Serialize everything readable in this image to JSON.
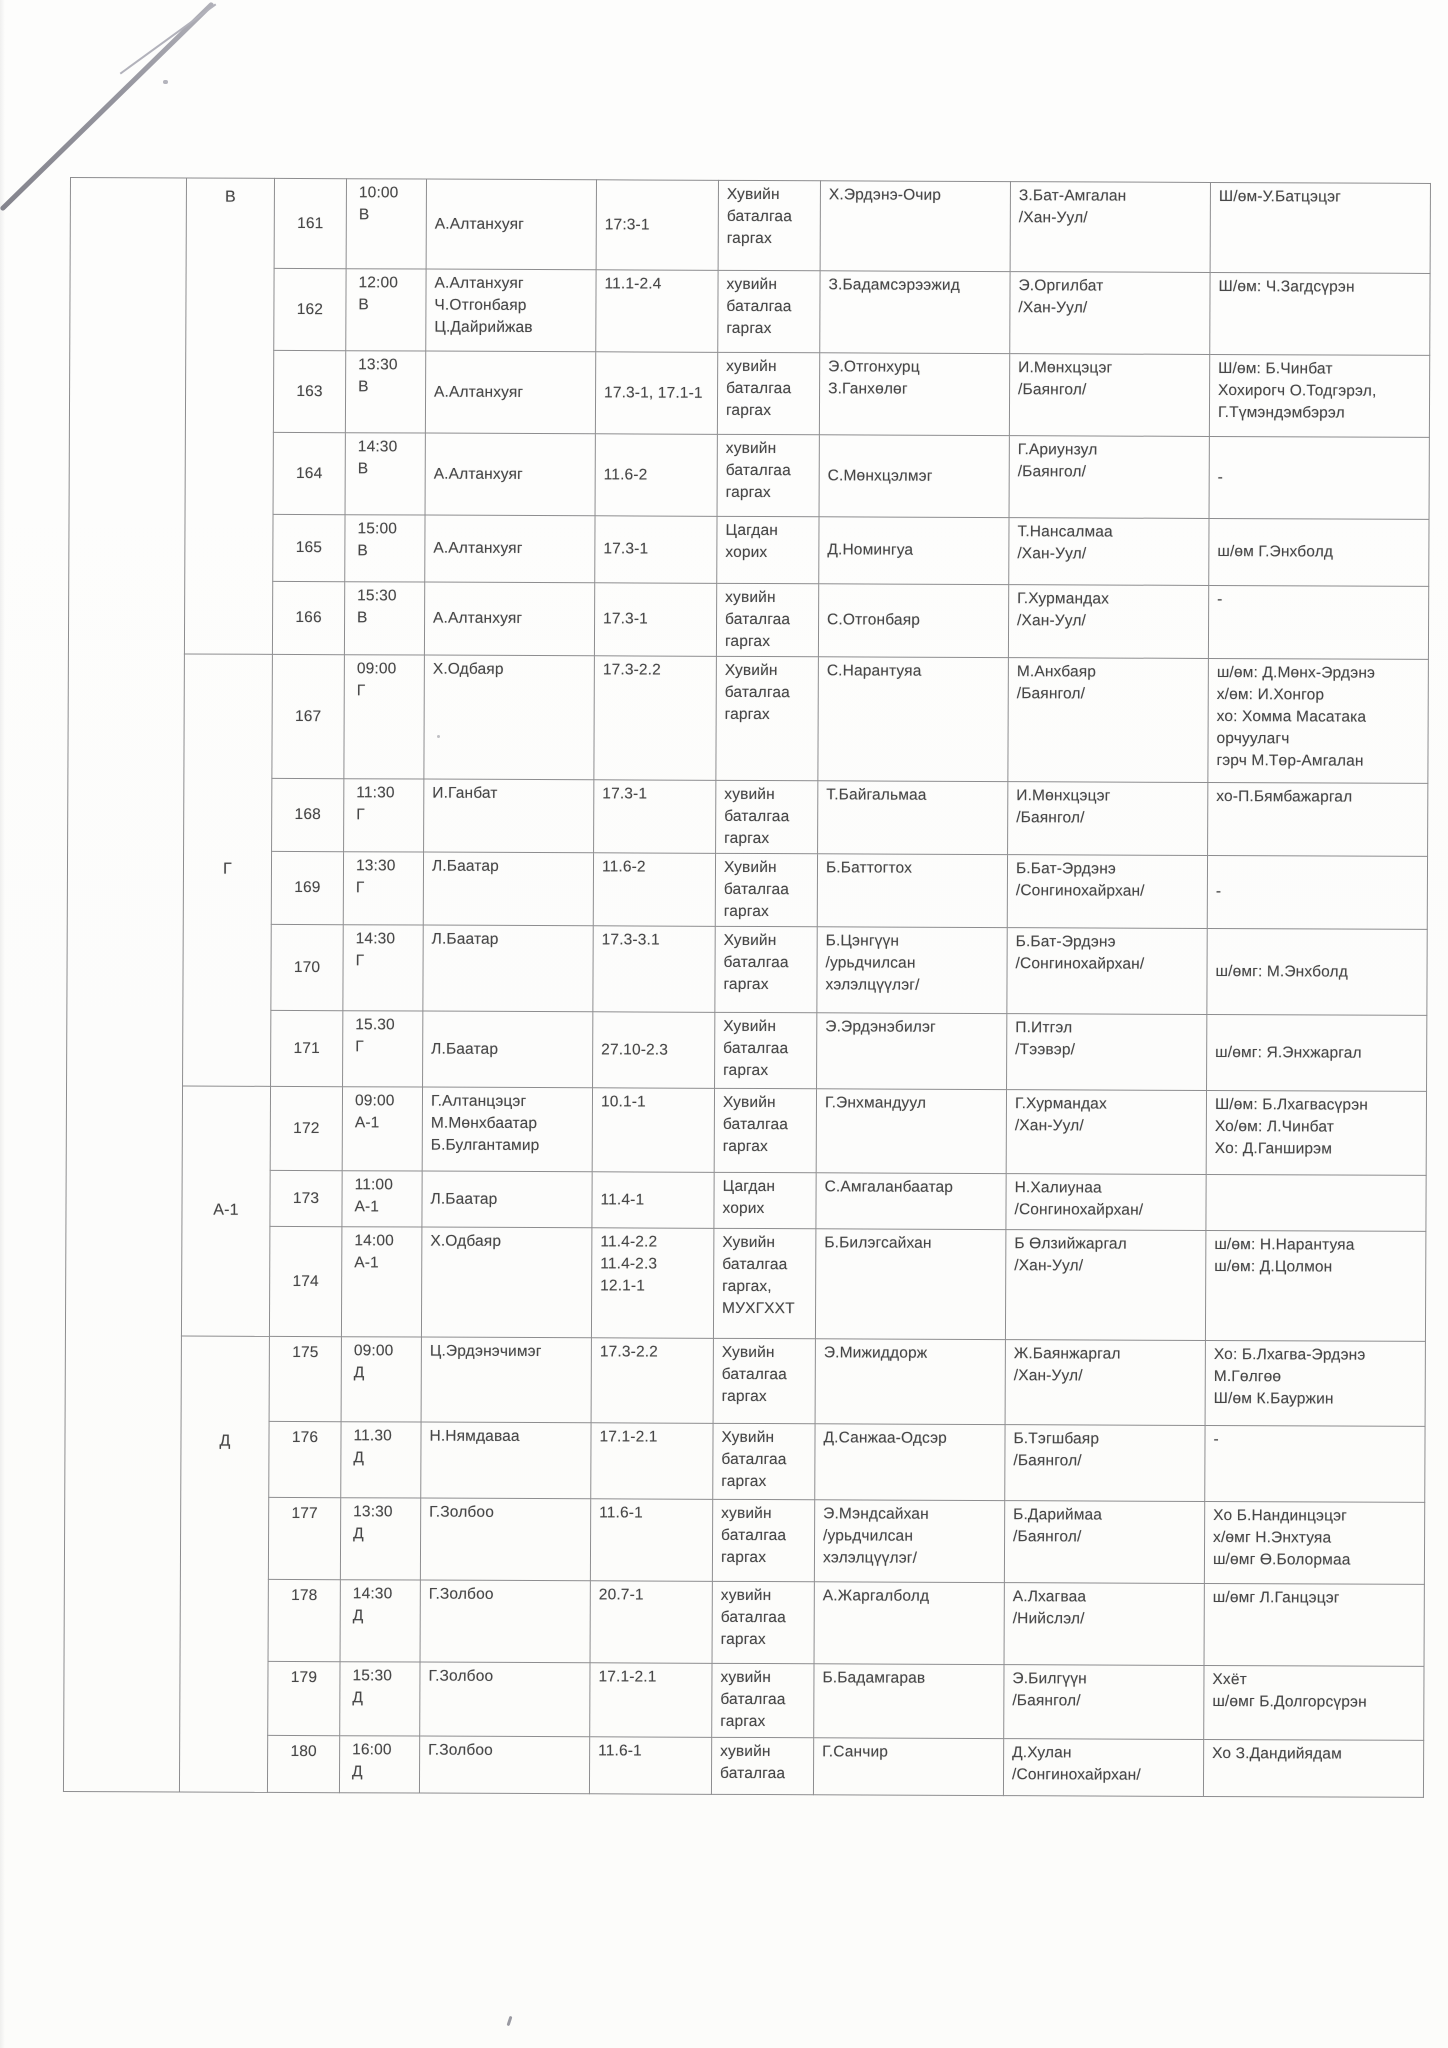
{
  "page": {
    "ink_color": "#474747",
    "border_color": "#8d8d8f",
    "paper_color": "#fdfdfc"
  },
  "table": {
    "groups": [
      {
        "label": "В",
        "rows": [
          {
            "no": "161",
            "time": "10:00",
            "session": "В",
            "judges": [
              "А.Алтанхуяг"
            ],
            "article": [
              "17:3-1"
            ],
            "request": "Хувийн баталгаа гаргах",
            "defendant": [
              "Х.Эрдэнэ-Очир"
            ],
            "prosecutor": [
              "З.Бат-Амгалан",
              "/Хан-Уул/"
            ],
            "notes": [
              "Ш/өм-У.Батцэцэг"
            ]
          },
          {
            "no": "162",
            "time": "12:00",
            "session": "В",
            "judges": [
              "А.Алтанхуяг",
              "Ч.Отгонбаяр",
              "Ц.Дайрийжав"
            ],
            "article": [
              "11.1-2.4"
            ],
            "request": "хувийн баталгаа гаргах",
            "defendant": [
              "З.Бадамсэрээжид"
            ],
            "prosecutor": [
              "Э.Оргилбат",
              "/Хан-Уул/"
            ],
            "notes": [
              "Ш/өм: Ч.Загдсүрэн"
            ]
          },
          {
            "no": "163",
            "time": "13:30",
            "session": "В",
            "judges": [
              "А.Алтанхуяг"
            ],
            "article": [
              "17.3-1, 17.1-1"
            ],
            "request": "хувийн баталгаа гаргах",
            "defendant": [
              "Э.Отгонхурц",
              "З.Ганхөлөг"
            ],
            "prosecutor": [
              "И.Мөнхцэцэг",
              "/Баянгол/"
            ],
            "notes": [
              "Ш/өм: Б.Чинбат",
              "Хохирогч О.Тодгэрэл,",
              "Г.Түмэндэмбэрэл"
            ]
          },
          {
            "no": "164",
            "time": "14:30",
            "session": "В",
            "judges": [
              "А.Алтанхуяг"
            ],
            "article": [
              "11.6-2"
            ],
            "request": "хувийн баталгаа гаргах",
            "defendant": [
              "С.Мөнхцэлмэг"
            ],
            "prosecutor": [
              "Г.Ариунзул",
              "/Баянгол/"
            ],
            "notes": [
              "-"
            ]
          },
          {
            "no": "165",
            "time": "15:00",
            "session": "В",
            "judges": [
              "А.Алтанхуяг"
            ],
            "article": [
              "17.3-1"
            ],
            "request": "Цагдан хорих",
            "defendant": [
              "Д.Номингуа"
            ],
            "prosecutor": [
              "Т.Нансалмаа",
              "/Хан-Уул/"
            ],
            "notes": [
              "ш/өм Г.Энхболд"
            ]
          },
          {
            "no": "166",
            "time": "15:30",
            "session": "В",
            "judges": [
              "А.Алтанхуяг"
            ],
            "article": [
              "17.3-1"
            ],
            "request": "хувийн баталгаа гаргах",
            "defendant": [
              "С.Отгонбаяр"
            ],
            "prosecutor": [
              "Г.Хурмандах",
              "/Хан-Уул/"
            ],
            "notes": [
              "-"
            ]
          }
        ]
      },
      {
        "label": "Г",
        "rows": [
          {
            "no": "167",
            "time": "09:00",
            "session": "Г",
            "judges": [
              "Х.Одбаяр"
            ],
            "article": [
              "17.3-2.2"
            ],
            "request": "Хувийн баталгаа гаргах",
            "defendant": [
              "С.Нарантуяа"
            ],
            "prosecutor": [
              "М.Анхбаяр",
              "/Баянгол/"
            ],
            "notes": [
              "ш/өм: Д.Мөнх-Эрдэнэ",
              "х/өм: И.Хонгор",
              "хо: Хомма Масатака",
              "орчуулагч",
              "гэрч М.Төр-Амгалан"
            ]
          },
          {
            "no": "168",
            "time": "11:30",
            "session": "Г",
            "judges": [
              "И.Ганбат"
            ],
            "article": [
              "17.3-1"
            ],
            "request": "хувийн баталгаа гаргах",
            "defendant": [
              "Т.Байгальмаа"
            ],
            "prosecutor": [
              "И.Мөнхцэцэг",
              "/Баянгол/"
            ],
            "notes": [
              "хо-П.Бямбажаргал"
            ]
          },
          {
            "no": "169",
            "time": "13:30",
            "session": "Г",
            "judges": [
              "Л.Баатар"
            ],
            "article": [
              "11.6-2"
            ],
            "request": "Хувийн баталгаа гаргах",
            "defendant": [
              "Б.Баттогтох"
            ],
            "prosecutor": [
              "Б.Бат-Эрдэнэ",
              "/Сонгинохайрхан/"
            ],
            "notes": [
              "-"
            ]
          },
          {
            "no": "170",
            "time": "14:30",
            "session": "Г",
            "judges": [
              "Л.Баатар"
            ],
            "article": [
              "17.3-3.1"
            ],
            "request": "Хувийн баталгаа гаргах",
            "defendant": [
              "Б.Цэнгүүн",
              "/урьдчилсан хэлэлцүүлэг/"
            ],
            "prosecutor": [
              "Б.Бат-Эрдэнэ",
              "/Сонгинохайрхан/"
            ],
            "notes": [
              "ш/өмг: М.Энхболд"
            ]
          },
          {
            "no": "171",
            "time": "15.30",
            "session": "Г",
            "judges": [
              "Л.Баатар"
            ],
            "article": [
              "27.10-2.3"
            ],
            "request": "Хувийн баталгаа гаргах",
            "defendant": [
              "Э.Эрдэнэбилэг"
            ],
            "prosecutor": [
              "П.Итгэл",
              "/Тээвэр/"
            ],
            "notes": [
              "ш/өмг: Я.Энхжаргал"
            ]
          }
        ]
      },
      {
        "label": "А-1",
        "rows": [
          {
            "no": "172",
            "time": "09:00",
            "session": "А-1",
            "judges": [
              "Г.Алтанцэцэг",
              "М.Мөнхбаатар",
              "Б.Булгантамир"
            ],
            "article": [
              "10.1-1"
            ],
            "request": "Хувийн баталгаа гаргах",
            "defendant": [
              "Г.Энхмандуул"
            ],
            "prosecutor": [
              "Г.Хурмандах",
              "/Хан-Уул/"
            ],
            "notes": [
              "Ш/өм: Б.Лхагвасүрэн",
              "Хо/өм: Л.Чинбат",
              "Хо: Д.Ганширэм"
            ]
          },
          {
            "no": "173",
            "time": "11:00",
            "session": "А-1",
            "judges": [
              "Л.Баатар"
            ],
            "article": [
              "11.4-1"
            ],
            "request": "Цагдан хорих",
            "defendant": [
              "С.Амгаланбаатар"
            ],
            "prosecutor": [
              "Н.Халиунаа",
              "/Сонгинохайрхан/"
            ],
            "notes": [
              ""
            ]
          },
          {
            "no": "174",
            "time": "14:00",
            "session": "А-1",
            "judges": [
              "Х.Одбаяр"
            ],
            "article": [
              "11.4-2.2",
              "11.4-2.3",
              "12.1-1"
            ],
            "request": "Хувийн баталгаа гаргах, МУХГХХТ",
            "defendant": [
              "Б.Билэгсайхан"
            ],
            "prosecutor": [
              "Б Өлзийжаргал",
              "/Хан-Уул/"
            ],
            "notes": [
              "ш/өм: Н.Нарантуяа",
              "ш/өм: Д.Цолмон"
            ]
          }
        ]
      },
      {
        "label": "Д",
        "rows": [
          {
            "no": "175",
            "time": "09:00",
            "session": "Д",
            "judges": [
              "Ц.Эрдэнэчимэг"
            ],
            "article": [
              "17.3-2.2"
            ],
            "request": "Хувийн баталгаа гаргах",
            "defendant": [
              "Э.Мижиддорж"
            ],
            "prosecutor": [
              "Ж.Баянжаргал",
              "/Хан-Уул/"
            ],
            "notes": [
              "Хо: Б.Лхагва-Эрдэнэ",
              "М.Гөлгөө",
              "Ш/өм К.Бауржин"
            ]
          },
          {
            "no": "176",
            "time": "11.30",
            "session": "Д",
            "judges": [
              "Н.Нямдаваа"
            ],
            "article": [
              "17.1-2.1"
            ],
            "request": "Хувийн баталгаа гаргах",
            "defendant": [
              "Д.Санжаа-Одсэр"
            ],
            "prosecutor": [
              "Б.Тэгшбаяр",
              "/Баянгол/"
            ],
            "notes": [
              "-"
            ]
          },
          {
            "no": "177",
            "time": "13:30",
            "session": "Д",
            "judges": [
              "Г.Золбоо"
            ],
            "article": [
              "11.6-1"
            ],
            "request": "хувийн баталгаа гаргах",
            "defendant": [
              "Э.Мэндсайхан",
              "/урьдчилсан хэлэлцүүлэг/"
            ],
            "prosecutor": [
              "Б.Дариймаа",
              "/Баянгол/"
            ],
            "notes": [
              "Хо Б.Нандинцэцэг",
              "х/өмг Н.Энхтуяа",
              "ш/өмг Ө.Болормаа"
            ]
          },
          {
            "no": "178",
            "time": "14:30",
            "session": "Д",
            "judges": [
              "Г.Золбоо"
            ],
            "article": [
              "20.7-1"
            ],
            "request": "хувийн баталгаа гаргах",
            "defendant": [
              "А.Жаргалболд"
            ],
            "prosecutor": [
              "А.Лхагваа",
              "/Нийслэл/"
            ],
            "notes": [
              "ш/өмг Л.Ганцэцэг"
            ]
          },
          {
            "no": "179",
            "time": "15:30",
            "session": "Д",
            "judges": [
              "Г.Золбоо"
            ],
            "article": [
              "17.1-2.1"
            ],
            "request": "хувийн баталгаа гаргах",
            "defendant": [
              "Б.Бадамгарав"
            ],
            "prosecutor": [
              "Э.Билгүүн",
              "/Баянгол/"
            ],
            "notes": [
              "Ххёт",
              "ш/өмг Б.Долгорсүрэн"
            ]
          },
          {
            "no": "180",
            "time": "16:00",
            "session": "Д",
            "judges": [
              "Г.Золбоо"
            ],
            "article": [
              "11.6-1"
            ],
            "request": "хувийн баталгаа",
            "defendant": [
              "Г.Санчир"
            ],
            "prosecutor": [
              "Д.Хулан",
              "/Сонгинохайрхан/"
            ],
            "notes": [
              "Хо З.Дандийядам"
            ]
          }
        ]
      }
    ]
  }
}
